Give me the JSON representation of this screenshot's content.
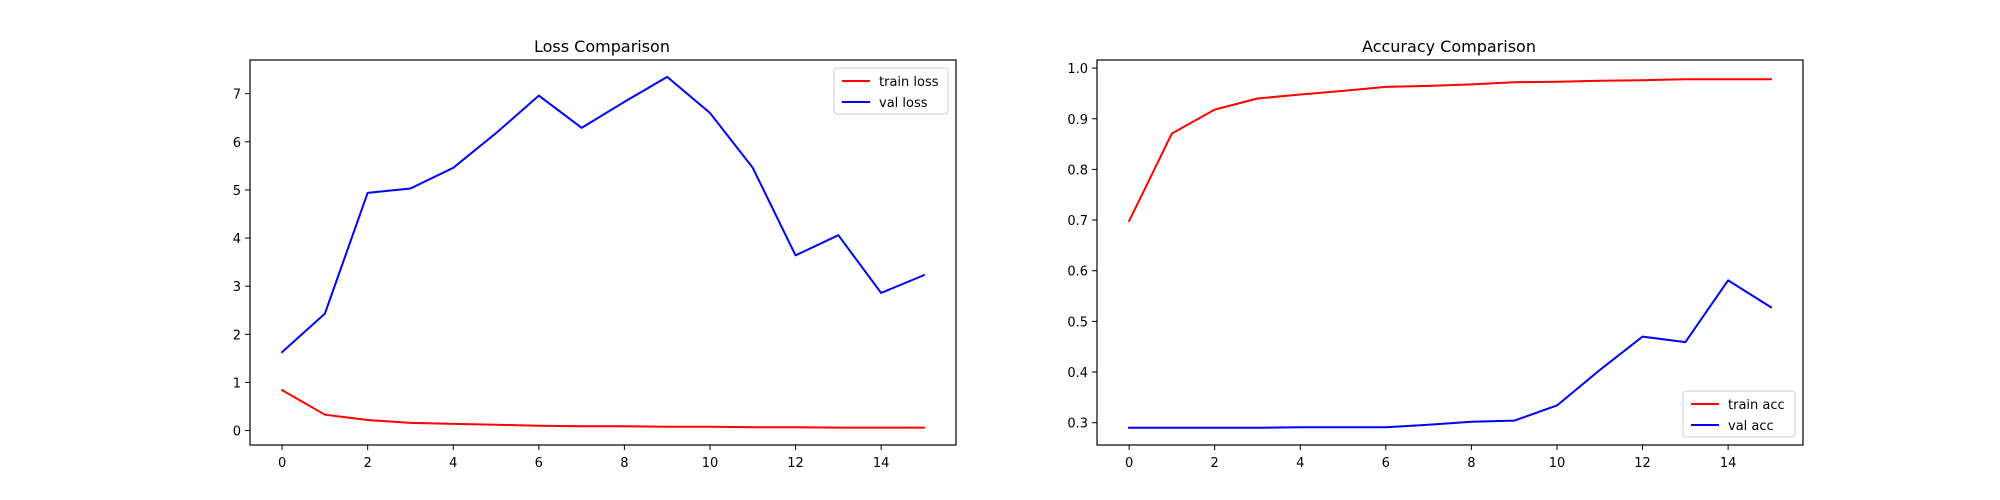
{
  "chart_data": [
    {
      "type": "line",
      "title": "Loss Comparison",
      "xlabel": "",
      "ylabel": "",
      "xlim": [
        -0.75,
        15.75
      ],
      "ylim": [
        -0.3,
        7.7
      ],
      "xticks": [
        0,
        2,
        4,
        6,
        8,
        10,
        12,
        14
      ],
      "yticks": [
        0,
        1,
        2,
        3,
        4,
        5,
        6,
        7
      ],
      "x": [
        0,
        1,
        2,
        3,
        4,
        5,
        6,
        7,
        8,
        9,
        10,
        11,
        12,
        13,
        14,
        15
      ],
      "legend_position": "top-right",
      "grid": false,
      "series": [
        {
          "name": "train loss",
          "color": "#ff0000",
          "values": [
            0.84,
            0.33,
            0.22,
            0.16,
            0.14,
            0.12,
            0.1,
            0.09,
            0.09,
            0.08,
            0.08,
            0.07,
            0.07,
            0.06,
            0.06,
            0.06
          ]
        },
        {
          "name": "val loss",
          "color": "#0000ff",
          "values": [
            1.63,
            2.43,
            4.94,
            5.03,
            5.46,
            6.18,
            6.96,
            6.29,
            6.83,
            7.35,
            6.6,
            5.46,
            3.64,
            4.06,
            2.86,
            3.23
          ]
        }
      ]
    },
    {
      "type": "line",
      "title": "Accuracy Comparison",
      "xlabel": "",
      "ylabel": "",
      "xlim": [
        -0.75,
        15.75
      ],
      "ylim": [
        0.256,
        1.016
      ],
      "xticks": [
        0,
        2,
        4,
        6,
        8,
        10,
        12,
        14
      ],
      "yticks": [
        0.3,
        0.4,
        0.5,
        0.6,
        0.7,
        0.8,
        0.9,
        1.0
      ],
      "x": [
        0,
        1,
        2,
        3,
        4,
        5,
        6,
        7,
        8,
        9,
        10,
        11,
        12,
        13,
        14,
        15
      ],
      "legend_position": "bottom-right",
      "grid": false,
      "series": [
        {
          "name": "train acc",
          "color": "#ff0000",
          "values": [
            0.698,
            0.871,
            0.918,
            0.94,
            0.948,
            0.955,
            0.963,
            0.965,
            0.968,
            0.972,
            0.973,
            0.975,
            0.976,
            0.978,
            0.978,
            0.978
          ]
        },
        {
          "name": "val acc",
          "color": "#0000ff",
          "values": [
            0.29,
            0.29,
            0.29,
            0.29,
            0.291,
            0.291,
            0.291,
            0.296,
            0.302,
            0.304,
            0.334,
            0.404,
            0.47,
            0.459,
            0.581,
            0.528
          ]
        }
      ]
    }
  ]
}
